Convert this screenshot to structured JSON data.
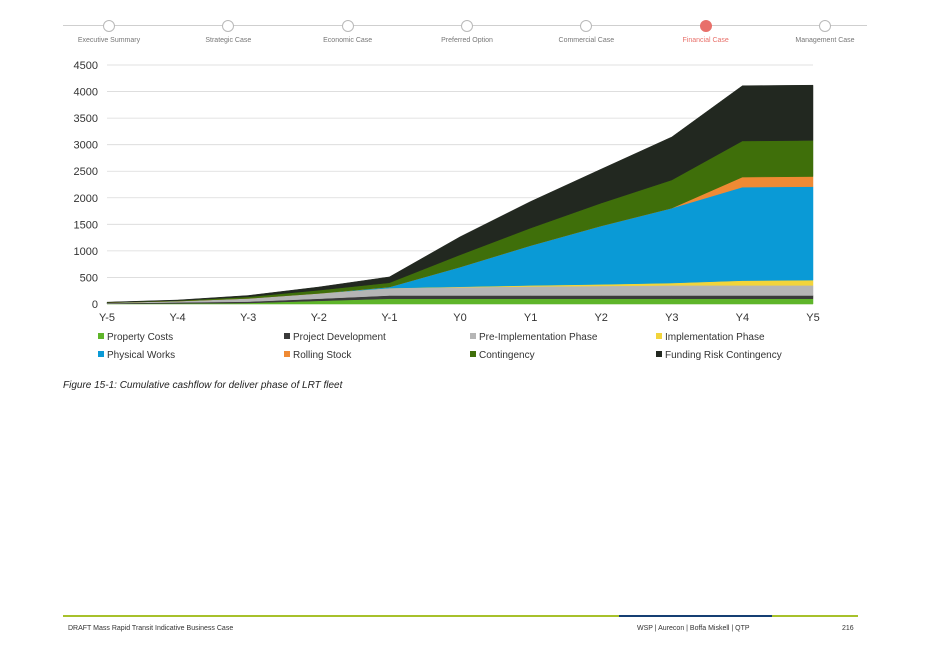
{
  "progress": {
    "steps": [
      "Executive Summary",
      "Strategic Case",
      "Economic Case",
      "Preferred Option",
      "Commercial Case",
      "Financial Case",
      "Management Case"
    ],
    "active_index": 5,
    "active_color": "#e8706a"
  },
  "chart_data": {
    "type": "area",
    "stacked": true,
    "categories": [
      "Y-5",
      "Y-4",
      "Y-3",
      "Y-2",
      "Y-1",
      "Y0",
      "Y1",
      "Y2",
      "Y3",
      "Y4",
      "Y5"
    ],
    "ylim": [
      0,
      4500
    ],
    "yticks": [
      0,
      500,
      1000,
      1500,
      2000,
      2500,
      3000,
      3500,
      4000,
      4500
    ],
    "grid": true,
    "legend_position": "bottom",
    "series": [
      {
        "name": "Property Costs",
        "color": "#5fb52a",
        "values": [
          5,
          10,
          20,
          60,
          100,
          100,
          100,
          100,
          100,
          100,
          100
        ]
      },
      {
        "name": "Project Development",
        "color": "#3a3a3a",
        "values": [
          10,
          20,
          25,
          40,
          60,
          60,
          60,
          60,
          60,
          60,
          60
        ]
      },
      {
        "name": "Pre-Implementation Phase",
        "color": "#b5b5b5",
        "values": [
          10,
          25,
          60,
          100,
          140,
          155,
          170,
          180,
          190,
          190,
          190
        ]
      },
      {
        "name": "Implementation Phase",
        "color": "#f2d43b",
        "values": [
          0,
          0,
          0,
          0,
          0,
          10,
          20,
          30,
          45,
          90,
          100
        ]
      },
      {
        "name": "Physical Works",
        "color": "#0a9ad6",
        "values": [
          0,
          0,
          0,
          0,
          20,
          370,
          750,
          1100,
          1410,
          1760,
          1760
        ]
      },
      {
        "name": "Rolling Stock",
        "color": "#ef8a34",
        "values": [
          0,
          0,
          0,
          0,
          0,
          0,
          0,
          0,
          0,
          190,
          190
        ]
      },
      {
        "name": "Contingency",
        "color": "#3f6f0a",
        "values": [
          5,
          10,
          30,
          60,
          80,
          230,
          330,
          430,
          530,
          680,
          680
        ]
      },
      {
        "name": "Funding Risk Contingency",
        "color": "#222820",
        "values": [
          5,
          10,
          25,
          60,
          110,
          340,
          500,
          640,
          810,
          1040,
          1040
        ]
      }
    ]
  },
  "caption": "Figure 15-1: Cumulative cashflow for deliver phase of LRT fleet",
  "footer": {
    "left": "DRAFT Mass Rapid Transit Indicative Business Case",
    "right": "WSP | Aurecon | Boffa Miskell | QTP",
    "page": "216",
    "bar_green": "#a7c12b",
    "bar_blue": "#153f73"
  }
}
